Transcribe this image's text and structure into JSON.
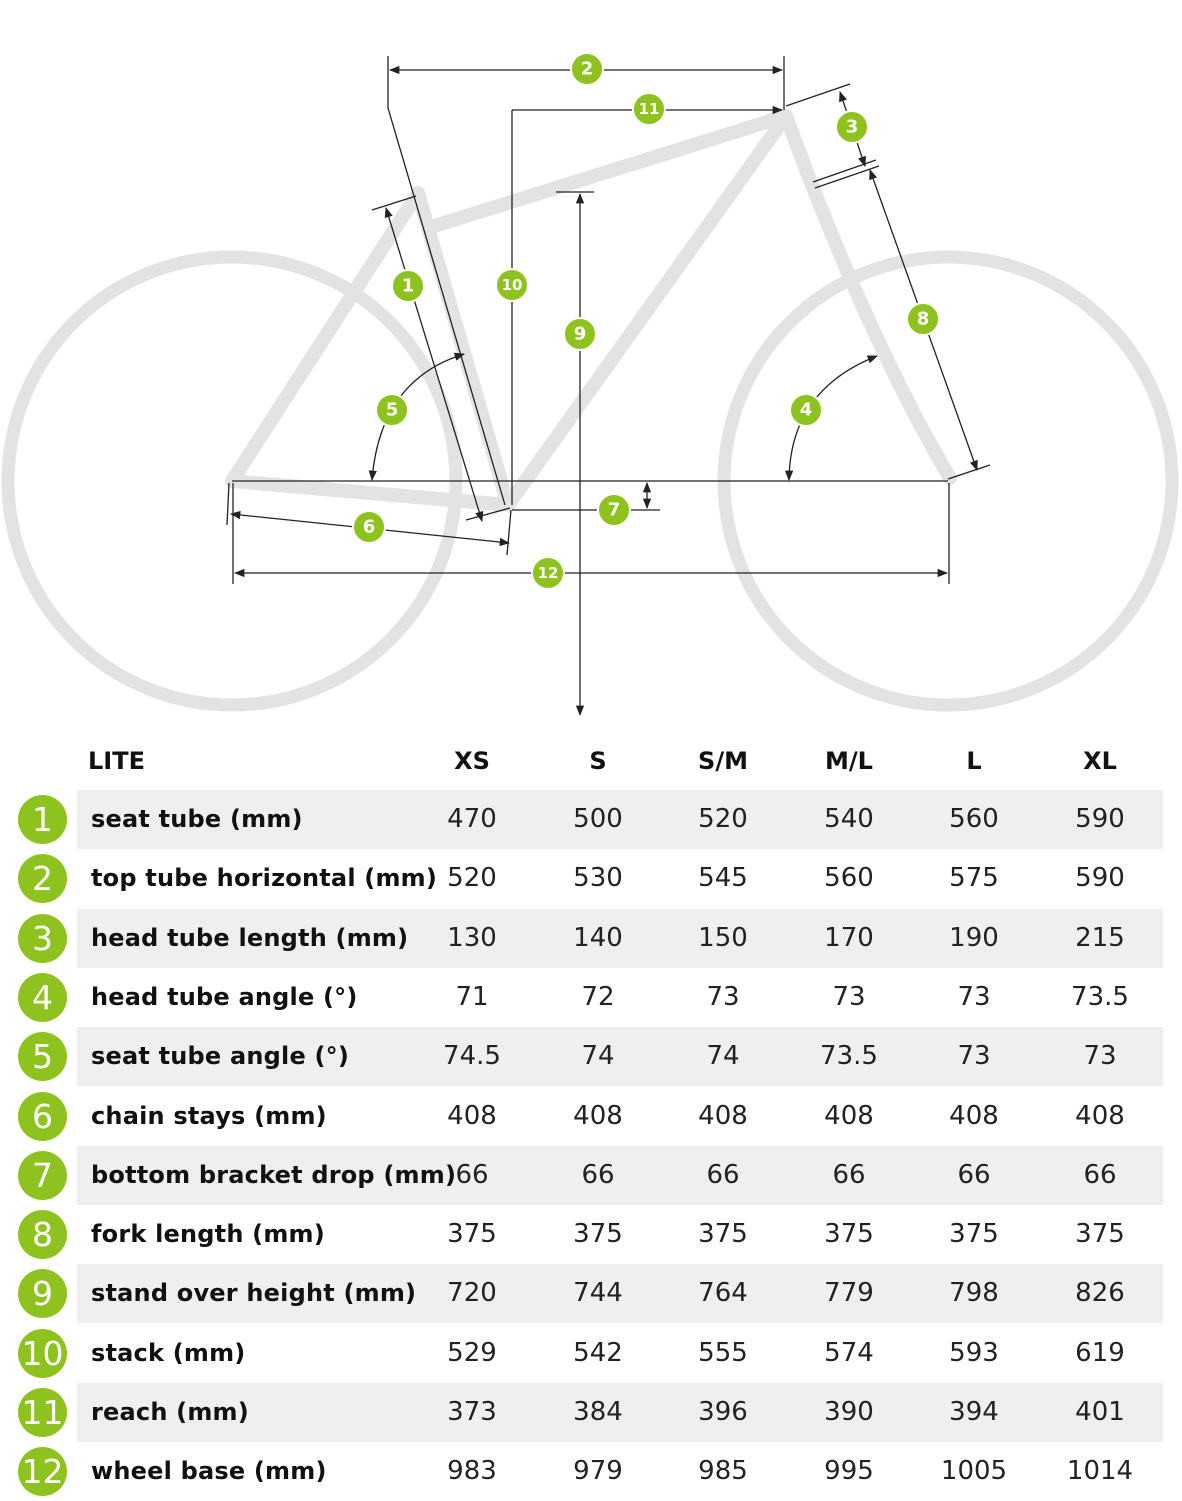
{
  "markers": [
    "1",
    "2",
    "3",
    "4",
    "5",
    "6",
    "7",
    "8",
    "9",
    "10",
    "11",
    "12"
  ],
  "table": {
    "model": "LITE",
    "sizes": [
      "XS",
      "S",
      "S/M",
      "M/L",
      "L",
      "XL"
    ],
    "rows": [
      {
        "num": "1",
        "label": "seat tube (mm)",
        "values": [
          "470",
          "500",
          "520",
          "540",
          "560",
          "590"
        ]
      },
      {
        "num": "2",
        "label": "top tube horizontal (mm)",
        "values": [
          "520",
          "530",
          "545",
          "560",
          "575",
          "590"
        ]
      },
      {
        "num": "3",
        "label": "head tube length (mm)",
        "values": [
          "130",
          "140",
          "150",
          "170",
          "190",
          "215"
        ]
      },
      {
        "num": "4",
        "label": "head tube angle (°)",
        "values": [
          "71",
          "72",
          "73",
          "73",
          "73",
          "73.5"
        ]
      },
      {
        "num": "5",
        "label": "seat tube angle (°)",
        "values": [
          "74.5",
          "74",
          "74",
          "73.5",
          "73",
          "73"
        ]
      },
      {
        "num": "6",
        "label": "chain stays (mm)",
        "values": [
          "408",
          "408",
          "408",
          "408",
          "408",
          "408"
        ]
      },
      {
        "num": "7",
        "label": "bottom bracket drop (mm)",
        "values": [
          "66",
          "66",
          "66",
          "66",
          "66",
          "66"
        ]
      },
      {
        "num": "8",
        "label": "fork length (mm)",
        "values": [
          "375",
          "375",
          "375",
          "375",
          "375",
          "375"
        ]
      },
      {
        "num": "9",
        "label": "stand over height (mm)",
        "values": [
          "720",
          "744",
          "764",
          "779",
          "798",
          "826"
        ]
      },
      {
        "num": "10",
        "label": "stack (mm)",
        "values": [
          "529",
          "542",
          "555",
          "574",
          "593",
          "619"
        ]
      },
      {
        "num": "11",
        "label": "reach (mm)",
        "values": [
          "373",
          "384",
          "396",
          "390",
          "394",
          "401"
        ]
      },
      {
        "num": "12",
        "label": "wheel base (mm)",
        "values": [
          "983",
          "979",
          "985",
          "995",
          "1005",
          "1014"
        ]
      }
    ]
  }
}
